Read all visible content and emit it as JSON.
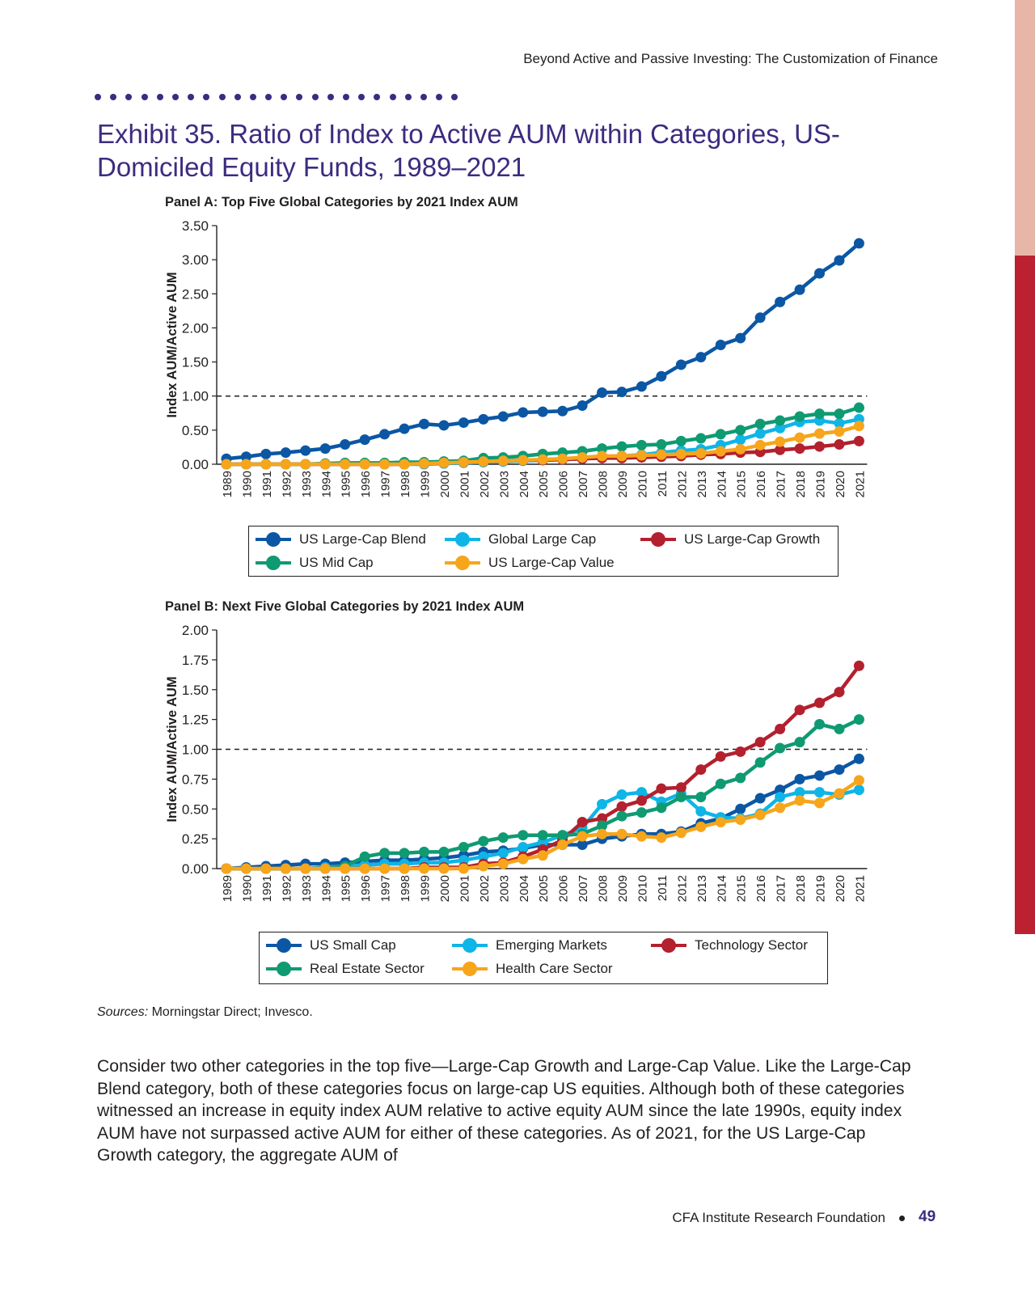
{
  "header": {
    "running_title": "Beyond Active and Passive Investing: The Customization of Finance"
  },
  "exhibit": {
    "title": "Exhibit 35. Ratio of Index to Active AUM within Categories, US-Domiciled Equity Funds, 1989–2021"
  },
  "chart_data": [
    {
      "type": "line",
      "title": "Panel A: Top Five Global Categories by 2021 Index AUM",
      "xlabel": "",
      "ylabel": "Index AUM/Active AUM",
      "ylim": [
        0,
        3.5
      ],
      "yticks": [
        "0.00",
        "0.50",
        "1.00",
        "1.50",
        "2.00",
        "2.50",
        "3.00",
        "3.50"
      ],
      "reference_line": 1.0,
      "legend_position": "bottom",
      "x": [
        "1989",
        "1990",
        "1991",
        "1992",
        "1993",
        "1994",
        "1995",
        "1996",
        "1997",
        "1998",
        "1999",
        "2000",
        "2001",
        "2002",
        "2003",
        "2004",
        "2005",
        "2006",
        "2007",
        "2008",
        "2009",
        "2010",
        "2011",
        "2012",
        "2013",
        "2014",
        "2015",
        "2016",
        "2017",
        "2018",
        "2019",
        "2020",
        "2021"
      ],
      "series": [
        {
          "name": "US Large-Cap Blend",
          "color": "#0b57a4",
          "values": [
            0.08,
            0.11,
            0.15,
            0.17,
            0.2,
            0.23,
            0.29,
            0.36,
            0.44,
            0.52,
            0.59,
            0.57,
            0.61,
            0.66,
            0.7,
            0.76,
            0.77,
            0.78,
            0.86,
            1.05,
            1.06,
            1.14,
            1.29,
            1.46,
            1.57,
            1.75,
            1.85,
            2.15,
            2.38,
            2.56,
            2.8,
            2.99,
            3.24
          ]
        },
        {
          "name": "Global Large Cap",
          "color": "#0eb5e6",
          "values": [
            0,
            0,
            0,
            0,
            0,
            0,
            0,
            0,
            0,
            0,
            0,
            0.01,
            0.02,
            0.03,
            0.04,
            0.05,
            0.06,
            0.07,
            0.08,
            0.1,
            0.12,
            0.14,
            0.17,
            0.2,
            0.22,
            0.28,
            0.36,
            0.45,
            0.53,
            0.62,
            0.64,
            0.6,
            0.66
          ]
        },
        {
          "name": "US Large-Cap Growth",
          "color": "#b3202e",
          "values": [
            0,
            0,
            0,
            0,
            0,
            0,
            0,
            0,
            0,
            0,
            0.01,
            0.02,
            0.03,
            0.04,
            0.05,
            0.06,
            0.06,
            0.07,
            0.08,
            0.09,
            0.09,
            0.1,
            0.11,
            0.12,
            0.14,
            0.15,
            0.17,
            0.18,
            0.21,
            0.23,
            0.26,
            0.29,
            0.34
          ]
        },
        {
          "name": "US Mid Cap",
          "color": "#0f9a72",
          "values": [
            0,
            0,
            0,
            0,
            0,
            0.01,
            0.02,
            0.02,
            0.02,
            0.03,
            0.03,
            0.04,
            0.05,
            0.09,
            0.1,
            0.12,
            0.15,
            0.17,
            0.19,
            0.23,
            0.26,
            0.28,
            0.29,
            0.34,
            0.38,
            0.44,
            0.5,
            0.59,
            0.64,
            0.7,
            0.74,
            0.74,
            0.83
          ]
        },
        {
          "name": "US Large-Cap Value",
          "color": "#f7a51b",
          "values": [
            0,
            0,
            0,
            0,
            0,
            0,
            0,
            0,
            0,
            0,
            0.01,
            0.02,
            0.03,
            0.04,
            0.05,
            0.06,
            0.07,
            0.08,
            0.1,
            0.12,
            0.12,
            0.13,
            0.14,
            0.15,
            0.16,
            0.19,
            0.22,
            0.28,
            0.33,
            0.39,
            0.45,
            0.48,
            0.56
          ]
        }
      ]
    },
    {
      "type": "line",
      "title": "Panel B: Next Five Global Categories by 2021 Index AUM",
      "xlabel": "",
      "ylabel": "Index AUM/Active AUM",
      "ylim": [
        0,
        2.0
      ],
      "yticks": [
        "0.00",
        "0.25",
        "0.50",
        "0.75",
        "1.00",
        "1.25",
        "1.50",
        "1.75",
        "2.00"
      ],
      "reference_line": 1.0,
      "legend_position": "bottom",
      "x": [
        "1989",
        "1990",
        "1991",
        "1992",
        "1993",
        "1994",
        "1995",
        "1996",
        "1997",
        "1998",
        "1999",
        "2000",
        "2001",
        "2002",
        "2003",
        "2004",
        "2005",
        "2006",
        "2007",
        "2008",
        "2009",
        "2010",
        "2011",
        "2012",
        "2013",
        "2014",
        "2015",
        "2016",
        "2017",
        "2018",
        "2019",
        "2020",
        "2021"
      ],
      "series": [
        {
          "name": "US Small Cap",
          "color": "#0b57a4",
          "values": [
            0,
            0.01,
            0.02,
            0.03,
            0.04,
            0.04,
            0.05,
            0.06,
            0.07,
            0.07,
            0.08,
            0.09,
            0.11,
            0.14,
            0.15,
            0.17,
            0.2,
            0.2,
            0.2,
            0.25,
            0.27,
            0.29,
            0.29,
            0.31,
            0.38,
            0.42,
            0.5,
            0.59,
            0.66,
            0.75,
            0.78,
            0.83,
            0.92
          ]
        },
        {
          "name": "Emerging Markets",
          "color": "#0eb5e6",
          "values": [
            0,
            0,
            0,
            0,
            0,
            0.01,
            0.02,
            0.03,
            0.04,
            0.04,
            0.05,
            0.05,
            0.07,
            0.1,
            0.13,
            0.18,
            0.22,
            0.28,
            0.34,
            0.54,
            0.62,
            0.64,
            0.56,
            0.63,
            0.48,
            0.43,
            0.42,
            0.46,
            0.6,
            0.64,
            0.64,
            0.62,
            0.66
          ]
        },
        {
          "name": "Technology Sector",
          "color": "#b3202e",
          "values": [
            0,
            0,
            0,
            0,
            0,
            0,
            0,
            0,
            0,
            0,
            0.01,
            0.01,
            0.01,
            0.04,
            0.05,
            0.1,
            0.16,
            0.24,
            0.39,
            0.42,
            0.52,
            0.57,
            0.67,
            0.68,
            0.83,
            0.94,
            0.98,
            1.06,
            1.17,
            1.33,
            1.39,
            1.48,
            1.7
          ]
        },
        {
          "name": "Real Estate Sector",
          "color": "#0f9a72",
          "values": [
            0,
            0,
            0,
            0,
            0,
            0,
            0.02,
            0.1,
            0.13,
            0.13,
            0.14,
            0.14,
            0.18,
            0.23,
            0.26,
            0.28,
            0.28,
            0.28,
            0.29,
            0.36,
            0.44,
            0.47,
            0.51,
            0.6,
            0.6,
            0.71,
            0.76,
            0.89,
            1.01,
            1.06,
            1.21,
            1.17,
            1.25
          ]
        },
        {
          "name": "Health Care Sector",
          "color": "#f7a51b",
          "values": [
            0,
            0,
            0,
            0,
            0,
            0,
            0,
            0,
            0,
            0,
            0,
            0,
            0,
            0.02,
            0.04,
            0.08,
            0.11,
            0.2,
            0.27,
            0.29,
            0.29,
            0.27,
            0.26,
            0.3,
            0.35,
            0.39,
            0.41,
            0.45,
            0.51,
            0.57,
            0.55,
            0.63,
            0.74
          ]
        }
      ]
    }
  ],
  "sources": {
    "label": "Sources:",
    "text": " Morningstar Direct; Invesco."
  },
  "body": {
    "paragraph": "Consider two other categories in the top five—Large-Cap Growth and Large-Cap Value. Like the Large-Cap Blend category, both of these categories focus on large-cap US equities. Although both of these categories witnessed an increase in equity index AUM relative to active equity AUM since the late 1990s, equity index AUM have not surpassed active AUM for either of these categories. As of 2021, for the US Large-Cap Growth category, the aggregate AUM of"
  },
  "footer": {
    "org": "CFA Institute Research Foundation",
    "page": "49"
  }
}
